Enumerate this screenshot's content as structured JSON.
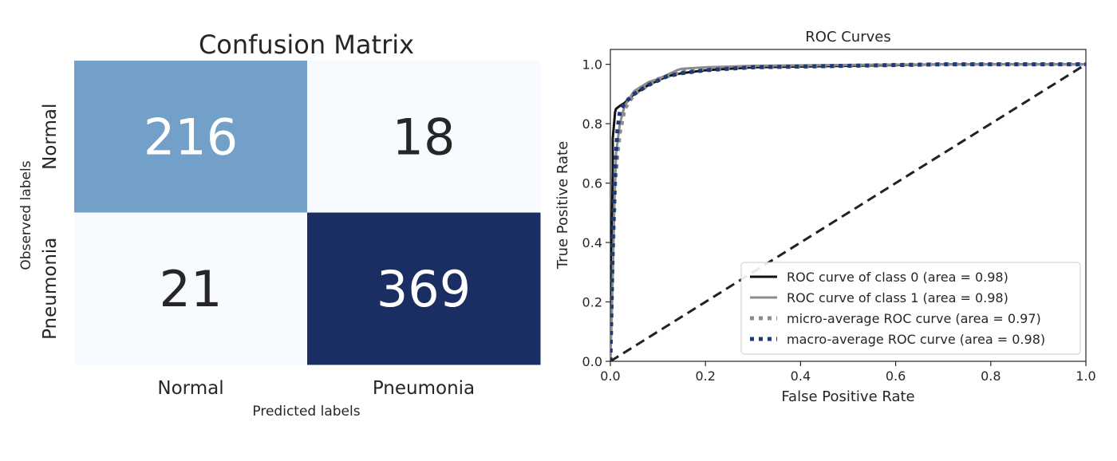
{
  "chart_data": [
    {
      "type": "heatmap",
      "title": "Confusion Matrix",
      "xlabel": "Predicted labels",
      "ylabel": "Observed labels",
      "x_categories": [
        "Normal",
        "Pneumonia"
      ],
      "y_categories": [
        "Normal",
        "Pneumonia"
      ],
      "values": [
        [
          216,
          18
        ],
        [
          21,
          369
        ]
      ],
      "colormap": "Blues",
      "colors": {
        "216": "#72a0c8",
        "18": "#f7fbff",
        "21": "#f7fbff",
        "369": "#1b2e63"
      },
      "text_colors": {
        "dark": "#262626",
        "light": "#ffffff"
      },
      "grid": false,
      "colorbar": false
    },
    {
      "type": "line",
      "title": "ROC Curves",
      "xlabel": "False Positive Rate",
      "ylabel": "True Positive Rate",
      "xlim": [
        0.0,
        1.0
      ],
      "ylim": [
        0.0,
        1.05
      ],
      "xticks": [
        "0.0",
        "0.2",
        "0.4",
        "0.6",
        "0.8",
        "1.0"
      ],
      "yticks": [
        "0.0",
        "0.2",
        "0.4",
        "0.6",
        "0.8",
        "1.0"
      ],
      "grid": false,
      "legend_position": "lower-right",
      "series": [
        {
          "name": "ROC curve of class 0 (area = 0.98)",
          "color": "#111111",
          "style": "solid",
          "x": [
            0.0,
            0.002,
            0.005,
            0.005,
            0.01,
            0.012,
            0.02,
            0.03,
            0.05,
            0.08,
            0.12,
            0.15,
            0.2,
            0.3,
            0.5,
            0.7,
            1.0
          ],
          "y": [
            0.0,
            0.3,
            0.65,
            0.75,
            0.84,
            0.85,
            0.86,
            0.87,
            0.9,
            0.93,
            0.96,
            0.97,
            0.98,
            0.99,
            0.995,
            1.0,
            1.0
          ]
        },
        {
          "name": "ROC curve of class 1 (area = 0.98)",
          "color": "#8c8c8c",
          "style": "solid",
          "x": [
            0.0,
            0.003,
            0.008,
            0.012,
            0.016,
            0.02,
            0.03,
            0.05,
            0.08,
            0.1,
            0.14,
            0.15,
            0.2,
            0.3,
            0.5,
            0.7,
            1.0
          ],
          "y": [
            0.0,
            0.15,
            0.5,
            0.7,
            0.75,
            0.8,
            0.86,
            0.91,
            0.94,
            0.95,
            0.98,
            0.985,
            0.99,
            0.995,
            0.998,
            1.0,
            1.0
          ]
        },
        {
          "name": "micro-average ROC curve (area = 0.97)",
          "color": "#8c8c8c",
          "style": "dotted",
          "x": [
            0.0,
            0.005,
            0.01,
            0.015,
            0.02,
            0.03,
            0.05,
            0.08,
            0.1,
            0.14,
            0.15,
            0.2,
            0.3,
            0.5,
            0.7,
            1.0
          ],
          "y": [
            0.0,
            0.35,
            0.6,
            0.7,
            0.77,
            0.85,
            0.9,
            0.93,
            0.95,
            0.97,
            0.98,
            0.985,
            0.99,
            0.995,
            1.0,
            1.0
          ]
        },
        {
          "name": "macro-average ROC curve (area = 0.98)",
          "color": "#1f3a7a",
          "style": "dotted",
          "x": [
            0.0,
            0.005,
            0.01,
            0.015,
            0.02,
            0.03,
            0.05,
            0.08,
            0.12,
            0.15,
            0.2,
            0.3,
            0.5,
            0.7,
            1.0
          ],
          "y": [
            0.0,
            0.4,
            0.65,
            0.78,
            0.84,
            0.87,
            0.9,
            0.93,
            0.96,
            0.97,
            0.98,
            0.99,
            0.995,
            1.0,
            1.0
          ]
        },
        {
          "name": "",
          "color": "#222222",
          "style": "dashed",
          "x": [
            0.0,
            1.0
          ],
          "y": [
            0.0,
            1.0
          ]
        }
      ]
    }
  ]
}
